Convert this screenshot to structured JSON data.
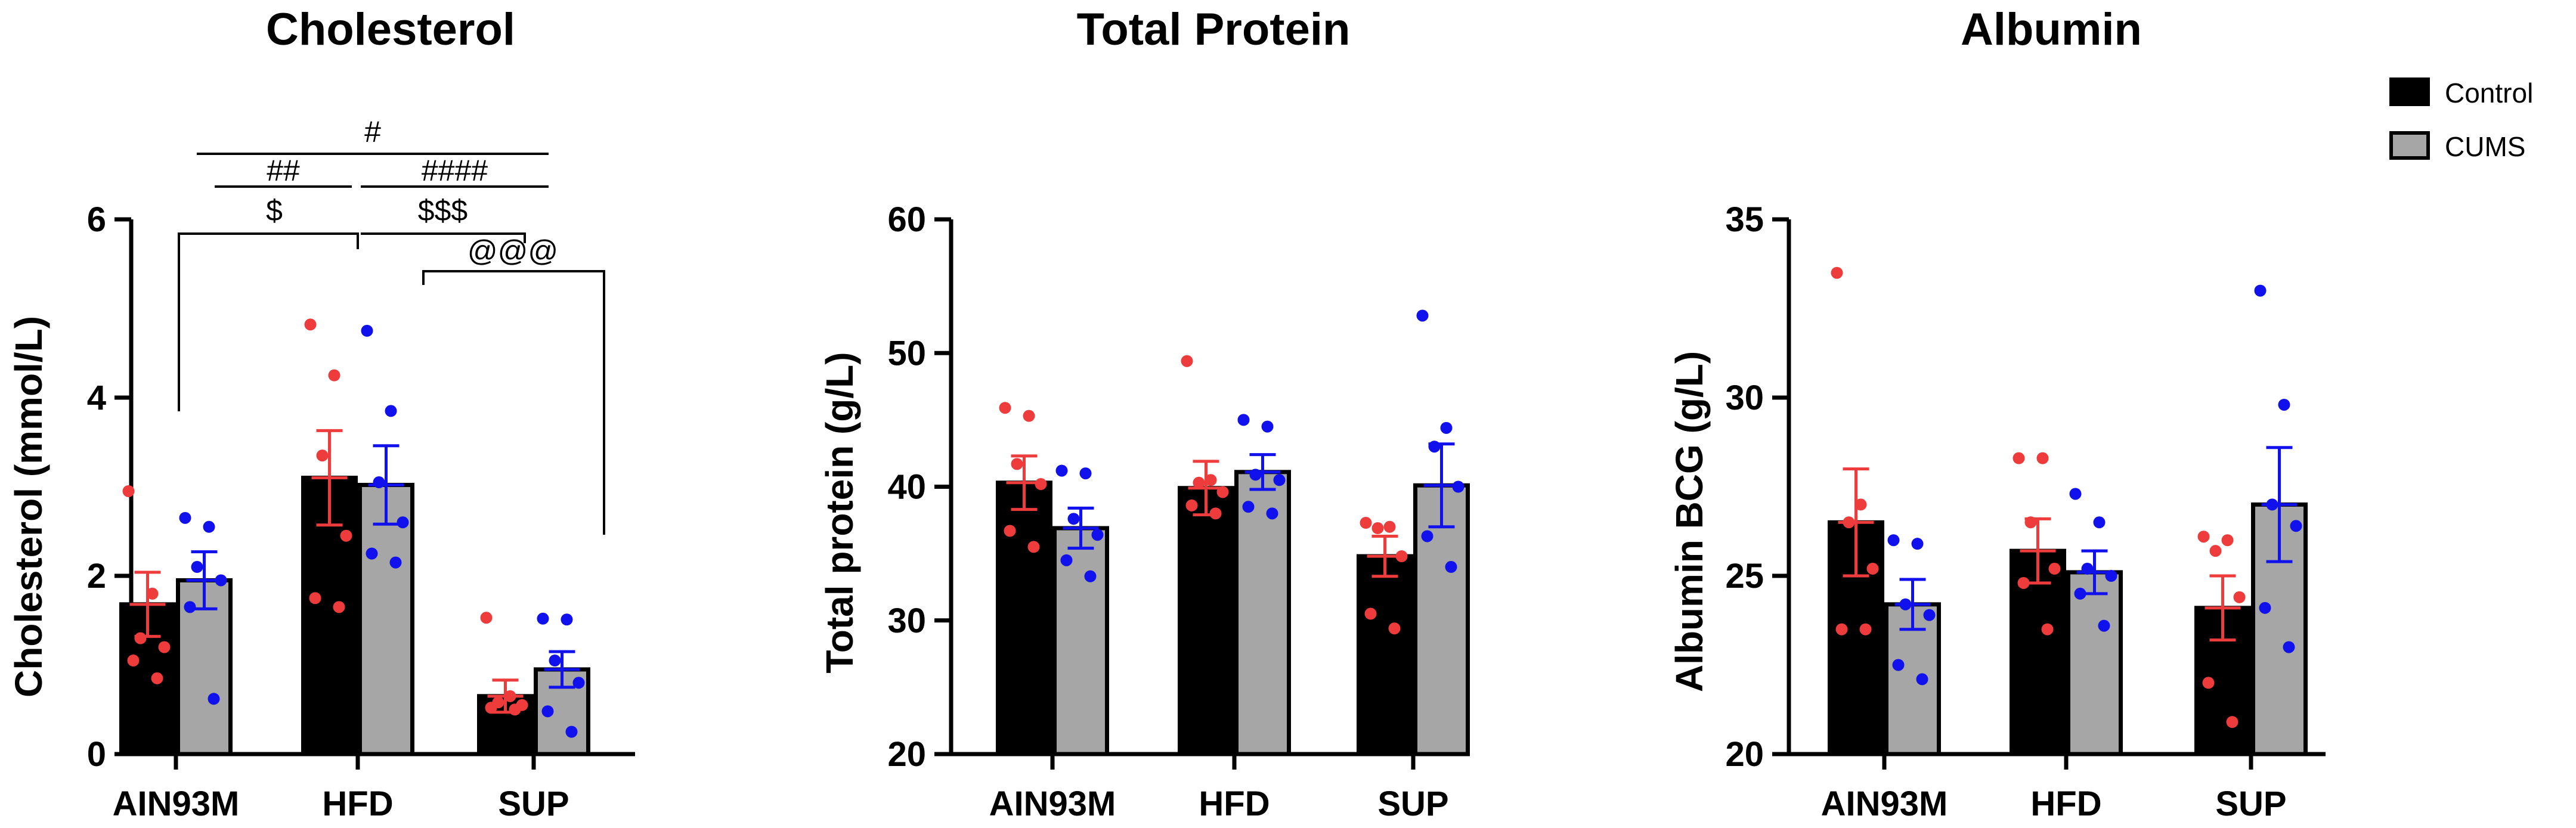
{
  "legend": [
    {
      "label": "Control",
      "color": "#000000"
    },
    {
      "label": "CUMS",
      "color": "#a6a6a6"
    }
  ],
  "colors": {
    "control_bar": "#000000",
    "cums_bar": "#a6a6a6",
    "control_points": "#ee3b3b",
    "cums_points": "#1111ee",
    "control_errorbar": "#ee3b3b",
    "cums_errorbar": "#1111ee"
  },
  "chart_data": [
    {
      "type": "bar",
      "title": "Cholesterol",
      "ylabel": "Cholesterol (mmol/L)",
      "xlabel": "",
      "ylim": [
        0,
        6
      ],
      "yticks": [
        0,
        2,
        4,
        6
      ],
      "categories": [
        "AIN93M",
        "HFD",
        "SUP"
      ],
      "series": [
        {
          "name": "Control",
          "values": [
            1.68,
            3.1,
            0.65
          ],
          "sem": [
            0.36,
            0.53,
            0.18
          ],
          "points": [
            [
              2.95,
              1.8,
              1.3,
              1.2,
              1.05,
              0.85
            ],
            [
              4.82,
              4.25,
              3.35,
              2.45,
              1.75,
              1.65
            ],
            [
              1.53,
              0.65,
              0.58,
              0.55,
              0.52,
              0.5
            ]
          ]
        },
        {
          "name": "CUMS",
          "values": [
            1.95,
            3.02,
            0.95
          ],
          "sem": [
            0.32,
            0.44,
            0.2
          ],
          "points": [
            [
              2.65,
              2.55,
              2.1,
              1.95,
              1.65,
              0.62
            ],
            [
              4.75,
              3.85,
              3.05,
              2.6,
              2.25,
              2.15
            ],
            [
              1.52,
              1.51,
              1.05,
              0.8,
              0.48,
              0.25
            ]
          ]
        }
      ],
      "annotations": [
        {
          "text": "#",
          "from": 0,
          "to": 2,
          "level": 4
        },
        {
          "text": "##",
          "from": 0,
          "to": 1,
          "level": 3
        },
        {
          "text": "####",
          "from": 1,
          "to": 2,
          "level": 3
        },
        {
          "text": "$",
          "from": 0,
          "to": 1,
          "level": 2
        },
        {
          "text": "$$$",
          "from": 1,
          "to": 2,
          "level": 2
        },
        {
          "text": "@@@",
          "from": 1,
          "to": 2,
          "level": 1
        }
      ]
    },
    {
      "type": "bar",
      "title": "Total Protein",
      "ylabel": "Total protein (g/L)",
      "xlabel": "",
      "ylim": [
        20,
        60
      ],
      "yticks": [
        20,
        30,
        40,
        50,
        60
      ],
      "categories": [
        "AIN93M",
        "HFD",
        "SUP"
      ],
      "series": [
        {
          "name": "Control",
          "values": [
            40.3,
            39.9,
            34.8
          ],
          "sem": [
            2.0,
            2.0,
            1.5
          ],
          "points": [
            [
              45.9,
              45.3,
              41.7,
              40.2,
              36.7,
              35.5
            ],
            [
              49.4,
              40.5,
              40.3,
              39.6,
              38.6,
              38.0
            ],
            [
              37.3,
              37.0,
              36.9,
              34.8,
              30.5,
              29.4
            ]
          ]
        },
        {
          "name": "CUMS",
          "values": [
            36.9,
            41.1,
            40.1
          ],
          "sem": [
            1.5,
            1.3,
            3.1
          ],
          "points": [
            [
              41.2,
              41.0,
              37.6,
              36.4,
              34.5,
              33.3
            ],
            [
              45.0,
              44.5,
              40.9,
              40.5,
              38.5,
              38.0
            ],
            [
              52.8,
              44.4,
              43.0,
              40.0,
              36.3,
              34.0
            ]
          ]
        }
      ],
      "annotations": []
    },
    {
      "type": "bar",
      "title": "Albumin",
      "ylabel": "Albumin BCG (g/L)",
      "xlabel": "",
      "ylim": [
        20,
        35
      ],
      "yticks": [
        20,
        25,
        30,
        35
      ],
      "categories": [
        "AIN93M",
        "HFD",
        "SUP"
      ],
      "series": [
        {
          "name": "Control",
          "values": [
            26.5,
            25.7,
            24.1
          ],
          "sem": [
            1.5,
            0.9,
            0.9
          ],
          "points": [
            [
              33.5,
              27.0,
              26.5,
              25.2,
              23.5,
              23.5
            ],
            [
              28.3,
              28.3,
              26.5,
              25.2,
              24.8,
              23.5
            ],
            [
              26.1,
              26.0,
              25.7,
              24.4,
              22.0,
              20.9
            ]
          ]
        },
        {
          "name": "CUMS",
          "values": [
            24.2,
            25.1,
            27.0
          ],
          "sem": [
            0.7,
            0.6,
            1.6
          ],
          "points": [
            [
              26.0,
              25.9,
              24.2,
              23.9,
              22.5,
              22.1
            ],
            [
              27.3,
              26.5,
              25.2,
              25.0,
              24.5,
              23.6
            ],
            [
              33.0,
              29.8,
              27.0,
              26.4,
              24.1,
              23.0
            ]
          ]
        }
      ],
      "annotations": []
    }
  ]
}
